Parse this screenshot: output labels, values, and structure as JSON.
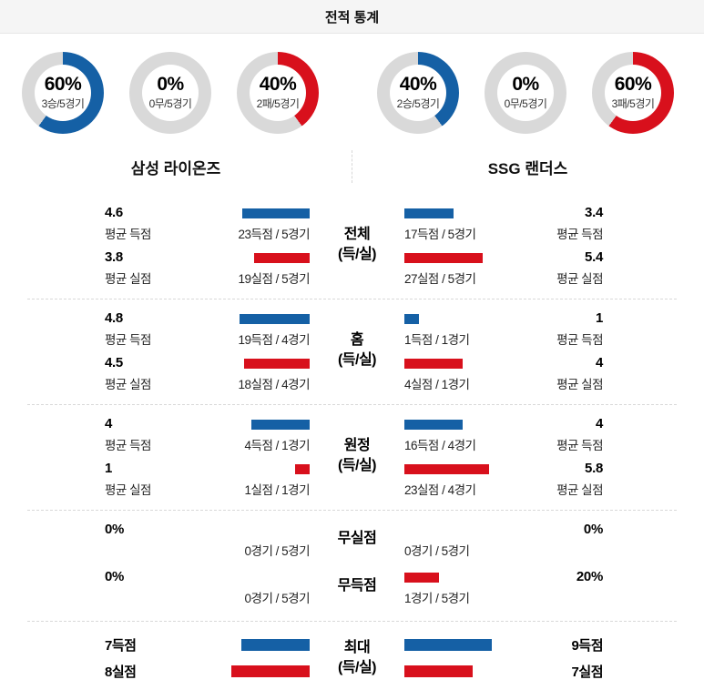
{
  "header": {
    "title": "전적 통계"
  },
  "colors": {
    "blue": "#1560a5",
    "red": "#d8101c",
    "gray": "#d9d9d9"
  },
  "teams": {
    "left": {
      "name": "삼성 라이온즈"
    },
    "right": {
      "name": "SSG 랜더스"
    }
  },
  "donuts": {
    "left": [
      {
        "pct": "60%",
        "value": 60,
        "sub": "3승/5경기",
        "color": "#1560a5"
      },
      {
        "pct": "0%",
        "value": 0,
        "sub": "0무/5경기",
        "color": "#1560a5"
      },
      {
        "pct": "40%",
        "value": 40,
        "sub": "2패/5경기",
        "color": "#d8101c"
      }
    ],
    "right": [
      {
        "pct": "40%",
        "value": 40,
        "sub": "2승/5경기",
        "color": "#1560a5"
      },
      {
        "pct": "0%",
        "value": 0,
        "sub": "0무/5경기",
        "color": "#1560a5"
      },
      {
        "pct": "60%",
        "value": 60,
        "sub": "3패/5경기",
        "color": "#d8101c"
      }
    ]
  },
  "sections": [
    {
      "center1": "전체",
      "center2": "(득/실)",
      "score": {
        "left": {
          "avg": "4.6",
          "label": "평균 득점",
          "bar": 4.6,
          "cap": "23득점 / 5경기"
        },
        "right": {
          "avg": "3.4",
          "label": "평균 득점",
          "bar": 3.4,
          "cap": "17득점 / 5경기"
        }
      },
      "concede": {
        "left": {
          "avg": "3.8",
          "label": "평균 실점",
          "bar": 3.8,
          "cap": "19실점 / 5경기"
        },
        "right": {
          "avg": "5.4",
          "label": "평균 실점",
          "bar": 5.4,
          "cap": "27실점 / 5경기"
        }
      }
    },
    {
      "center1": "홈",
      "center2": "(득/실)",
      "score": {
        "left": {
          "avg": "4.8",
          "label": "평균 득점",
          "bar": 4.8,
          "cap": "19득점 / 4경기"
        },
        "right": {
          "avg": "1",
          "label": "평균 득점",
          "bar": 1,
          "cap": "1득점 / 1경기"
        }
      },
      "concede": {
        "left": {
          "avg": "4.5",
          "label": "평균 실점",
          "bar": 4.5,
          "cap": "18실점 / 4경기"
        },
        "right": {
          "avg": "4",
          "label": "평균 실점",
          "bar": 4,
          "cap": "4실점 / 1경기"
        }
      }
    },
    {
      "center1": "원정",
      "center2": "(득/실)",
      "score": {
        "left": {
          "avg": "4",
          "label": "평균 득점",
          "bar": 4,
          "cap": "4득점 / 1경기"
        },
        "right": {
          "avg": "4",
          "label": "평균 득점",
          "bar": 4,
          "cap": "16득점 / 4경기"
        }
      },
      "concede": {
        "left": {
          "avg": "1",
          "label": "평균 실점",
          "bar": 1,
          "cap": "1실점 / 1경기"
        },
        "right": {
          "avg": "5.8",
          "label": "평균 실점",
          "bar": 5.8,
          "cap": "23실점 / 4경기"
        }
      }
    }
  ],
  "shutouts": {
    "rows": [
      {
        "center": "무실점",
        "left": {
          "pct": "0%",
          "bar": 0,
          "cap": "0경기 / 5경기"
        },
        "right": {
          "pct": "0%",
          "bar": 0,
          "cap": "0경기 / 5경기"
        }
      },
      {
        "center": "무득점",
        "left": {
          "pct": "0%",
          "bar": 0,
          "cap": "0경기 / 5경기"
        },
        "right": {
          "pct": "20%",
          "bar": 20,
          "cap": "1경기 / 5경기"
        }
      }
    ]
  },
  "max": {
    "center1": "최대",
    "center2": "(득/실)",
    "score": {
      "left": {
        "label": "7득점",
        "bar": 7
      },
      "right": {
        "label": "9득점",
        "bar": 9
      }
    },
    "concede": {
      "left": {
        "label": "8실점",
        "bar": 8
      },
      "right": {
        "label": "7실점",
        "bar": 7
      }
    }
  },
  "chart_data": [
    {
      "type": "pie",
      "team": "삼성 라이온즈",
      "slices": [
        {
          "label": "승",
          "percent": 60,
          "detail": "3승/5경기"
        },
        {
          "label": "무",
          "percent": 0,
          "detail": "0무/5경기"
        },
        {
          "label": "패",
          "percent": 40,
          "detail": "2패/5경기"
        }
      ]
    },
    {
      "type": "pie",
      "team": "SSG 랜더스",
      "slices": [
        {
          "label": "승",
          "percent": 40,
          "detail": "2승/5경기"
        },
        {
          "label": "무",
          "percent": 0,
          "detail": "0무/5경기"
        },
        {
          "label": "패",
          "percent": 60,
          "detail": "3패/5경기"
        }
      ]
    },
    {
      "type": "bar",
      "title": "전체 (득/실)",
      "series": [
        {
          "name": "삼성 라이온즈",
          "avg_scored": 4.6,
          "scored": 23,
          "avg_conceded": 3.8,
          "conceded": 19,
          "games": 5
        },
        {
          "name": "SSG 랜더스",
          "avg_scored": 3.4,
          "scored": 17,
          "avg_conceded": 5.4,
          "conceded": 27,
          "games": 5
        }
      ]
    },
    {
      "type": "bar",
      "title": "홈 (득/실)",
      "series": [
        {
          "name": "삼성 라이온즈",
          "avg_scored": 4.8,
          "scored": 19,
          "avg_conceded": 4.5,
          "conceded": 18,
          "games": 4
        },
        {
          "name": "SSG 랜더스",
          "avg_scored": 1,
          "scored": 1,
          "avg_conceded": 4,
          "conceded": 4,
          "games": 1
        }
      ]
    },
    {
      "type": "bar",
      "title": "원정 (득/실)",
      "series": [
        {
          "name": "삼성 라이온즈",
          "avg_scored": 4,
          "scored": 4,
          "avg_conceded": 1,
          "conceded": 1,
          "games": 1
        },
        {
          "name": "SSG 랜더스",
          "avg_scored": 4,
          "scored": 16,
          "avg_conceded": 5.8,
          "conceded": 23,
          "games": 4
        }
      ]
    },
    {
      "type": "bar",
      "title": "무실점/무득점",
      "series": [
        {
          "name": "삼성 라이온즈",
          "shutout_pct": 0,
          "shutout_games": "0경기 / 5경기",
          "scoreless_pct": 0,
          "scoreless_games": "0경기 / 5경기"
        },
        {
          "name": "SSG 랜더스",
          "shutout_pct": 0,
          "shutout_games": "0경기 / 5경기",
          "scoreless_pct": 20,
          "scoreless_games": "1경기 / 5경기"
        }
      ]
    },
    {
      "type": "bar",
      "title": "최대 (득/실)",
      "series": [
        {
          "name": "삼성 라이온즈",
          "max_scored": 7,
          "max_conceded": 8
        },
        {
          "name": "SSG 랜더스",
          "max_scored": 9,
          "max_conceded": 7
        }
      ]
    }
  ]
}
